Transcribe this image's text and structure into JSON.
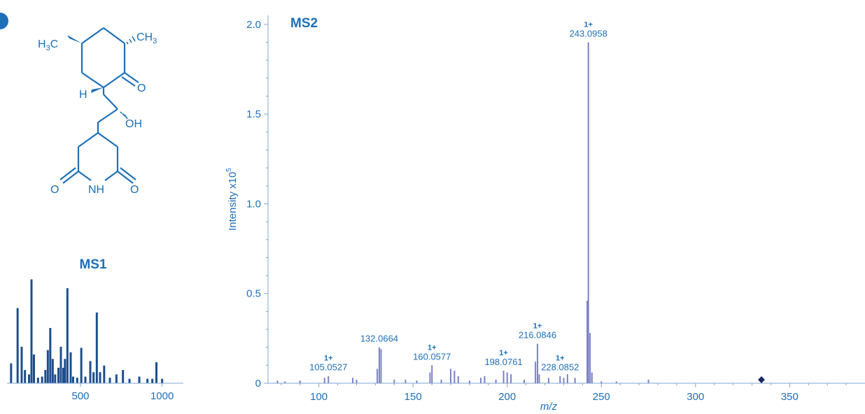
{
  "panel_marker_color": "#1d6fb8",
  "colors": {
    "accent": "#1d6fb8",
    "ms2_bars": "#7b82c4",
    "ms1_bars": "#1d4e8c",
    "marker": "#1a2a5e"
  },
  "structure": {
    "labels": {
      "h3c": "H3C",
      "ch3": "CH3",
      "h": "H",
      "o_ketone": "O",
      "oh": "OH",
      "o_left": "O",
      "nh": "NH",
      "o_right": "O"
    }
  },
  "chart_data": [
    {
      "type": "bar",
      "title": "MS1",
      "xticks": [
        500,
        1000
      ],
      "xlim": [
        50,
        1130
      ],
      "ylim": [
        0,
        1
      ],
      "bars": [
        {
          "x": 75,
          "y": 0.18
        },
        {
          "x": 115,
          "y": 0.68
        },
        {
          "x": 140,
          "y": 0.33
        },
        {
          "x": 160,
          "y": 0.12
        },
        {
          "x": 185,
          "y": 0.08
        },
        {
          "x": 200,
          "y": 0.94
        },
        {
          "x": 215,
          "y": 0.26
        },
        {
          "x": 240,
          "y": 0.05
        },
        {
          "x": 265,
          "y": 0.06
        },
        {
          "x": 285,
          "y": 0.12
        },
        {
          "x": 300,
          "y": 0.3
        },
        {
          "x": 315,
          "y": 0.5
        },
        {
          "x": 330,
          "y": 0.22
        },
        {
          "x": 345,
          "y": 0.08
        },
        {
          "x": 365,
          "y": 0.14
        },
        {
          "x": 380,
          "y": 0.33
        },
        {
          "x": 395,
          "y": 0.14
        },
        {
          "x": 405,
          "y": 0.22
        },
        {
          "x": 420,
          "y": 0.86
        },
        {
          "x": 440,
          "y": 0.28
        },
        {
          "x": 455,
          "y": 0.06
        },
        {
          "x": 480,
          "y": 0.05
        },
        {
          "x": 505,
          "y": 0.32
        },
        {
          "x": 530,
          "y": 0.06
        },
        {
          "x": 560,
          "y": 0.2
        },
        {
          "x": 580,
          "y": 0.1
        },
        {
          "x": 600,
          "y": 0.64
        },
        {
          "x": 620,
          "y": 0.1
        },
        {
          "x": 645,
          "y": 0.16
        },
        {
          "x": 680,
          "y": 0.05
        },
        {
          "x": 720,
          "y": 0.08
        },
        {
          "x": 760,
          "y": 0.12
        },
        {
          "x": 800,
          "y": 0.04
        },
        {
          "x": 860,
          "y": 0.06
        },
        {
          "x": 910,
          "y": 0.04
        },
        {
          "x": 940,
          "y": 0.04
        },
        {
          "x": 965,
          "y": 0.19
        },
        {
          "x": 1000,
          "y": 0.04
        }
      ]
    },
    {
      "type": "bar",
      "title": "MS2",
      "xlabel": "m/z",
      "ylabel": "Intensity x10",
      "ylabel_sup": "5",
      "xlim": [
        73,
        390
      ],
      "ylim": [
        0,
        2.05
      ],
      "xticks": [
        100,
        150,
        200,
        250,
        300,
        350
      ],
      "yticks": [
        "0",
        "0.5",
        "1.0",
        "1.5",
        "2.0"
      ],
      "ytick_values": [
        0,
        0.5,
        1.0,
        1.5,
        2.0
      ],
      "peaks": [
        {
          "mz": 243.0958,
          "intensity": 1.9,
          "label": "243.0958",
          "charge": "1+"
        },
        {
          "mz": 242.5,
          "intensity": 0.46
        },
        {
          "mz": 244.0,
          "intensity": 0.28
        },
        {
          "mz": 245.0,
          "intensity": 0.06
        },
        {
          "mz": 216.0846,
          "intensity": 0.22,
          "label": "216.0846",
          "charge": "1+"
        },
        {
          "mz": 215.0,
          "intensity": 0.12
        },
        {
          "mz": 217.0,
          "intensity": 0.05
        },
        {
          "mz": 228.0852,
          "intensity": 0.04,
          "label": "228.0852",
          "charge": "1+"
        },
        {
          "mz": 230.0,
          "intensity": 0.03
        },
        {
          "mz": 232.0,
          "intensity": 0.05
        },
        {
          "mz": 198.0761,
          "intensity": 0.07,
          "label": "198.0761",
          "charge": "1+"
        },
        {
          "mz": 200.0,
          "intensity": 0.06
        },
        {
          "mz": 202.0,
          "intensity": 0.05
        },
        {
          "mz": 160.0577,
          "intensity": 0.1,
          "label": "160.0577",
          "charge": "1+"
        },
        {
          "mz": 159.0,
          "intensity": 0.06
        },
        {
          "mz": 132.0664,
          "intensity": 0.2,
          "label": "132.0664"
        },
        {
          "mz": 133.0,
          "intensity": 0.19
        },
        {
          "mz": 131.0,
          "intensity": 0.08
        },
        {
          "mz": 105.0527,
          "intensity": 0.04,
          "label": "105.0527",
          "charge": "1+"
        },
        {
          "mz": 170.0,
          "intensity": 0.08
        },
        {
          "mz": 172.0,
          "intensity": 0.07
        },
        {
          "mz": 174.0,
          "intensity": 0.04
        },
        {
          "mz": 186.0,
          "intensity": 0.03
        },
        {
          "mz": 188.0,
          "intensity": 0.04
        },
        {
          "mz": 146.0,
          "intensity": 0.02
        },
        {
          "mz": 118.0,
          "intensity": 0.03
        },
        {
          "mz": 120.0,
          "intensity": 0.02
        },
        {
          "mz": 103.0,
          "intensity": 0.03
        },
        {
          "mz": 90.0,
          "intensity": 0.015
        },
        {
          "mz": 78.0,
          "intensity": 0.015
        },
        {
          "mz": 82.0,
          "intensity": 0.01
        },
        {
          "mz": 140.0,
          "intensity": 0.02
        },
        {
          "mz": 152.0,
          "intensity": 0.015
        },
        {
          "mz": 165.0,
          "intensity": 0.02
        },
        {
          "mz": 180.0,
          "intensity": 0.015
        },
        {
          "mz": 194.0,
          "intensity": 0.02
        },
        {
          "mz": 209.0,
          "intensity": 0.02
        },
        {
          "mz": 222.0,
          "intensity": 0.03
        },
        {
          "mz": 236.0,
          "intensity": 0.03
        },
        {
          "mz": 250.0,
          "intensity": 0.01
        },
        {
          "mz": 258.0,
          "intensity": 0.01
        },
        {
          "mz": 275.0,
          "intensity": 0.02
        }
      ],
      "marker": {
        "mz": 335,
        "intensity": 0.0
      }
    }
  ]
}
